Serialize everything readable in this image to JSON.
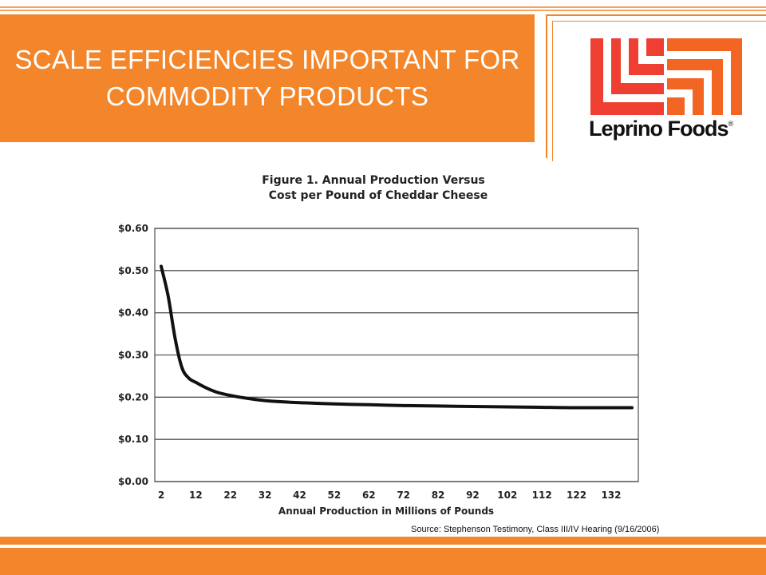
{
  "slide": {
    "title_lines": [
      "SCALE EFFICIENCIES IMPORTANT FOR",
      "COMMODITY PRODUCTS"
    ],
    "logo_text": "Leprino Foods",
    "logo_registered": "®",
    "source": "Source: Stephenson Testimony, Class III/IV  Hearing (9/16/2006)"
  },
  "colors": {
    "band": "#f3862a",
    "logo_red": "#ee3f32",
    "logo_orange": "#f26522"
  },
  "chart_data": {
    "type": "line",
    "title_lines": [
      "Figure 1.  Annual Production Versus",
      "Cost per Pound of Cheddar Cheese"
    ],
    "xlabel": "Annual Production in Millions of Pounds",
    "ylabel": "",
    "xticks": [
      2,
      12,
      22,
      32,
      42,
      52,
      62,
      72,
      82,
      92,
      102,
      112,
      122,
      132
    ],
    "yticks": [
      "$0.00",
      "$0.10",
      "$0.20",
      "$0.30",
      "$0.40",
      "$0.50",
      "$0.60"
    ],
    "xlim": [
      2,
      138
    ],
    "ylim": [
      0,
      0.6
    ],
    "grid": "horizontal",
    "legend": "none",
    "x": [
      2,
      4,
      6,
      8,
      10,
      12,
      15,
      18,
      22,
      27,
      32,
      37,
      42,
      52,
      62,
      72,
      82,
      92,
      102,
      112,
      122,
      132,
      138
    ],
    "y": [
      0.51,
      0.44,
      0.34,
      0.27,
      0.245,
      0.235,
      0.222,
      0.212,
      0.204,
      0.197,
      0.192,
      0.189,
      0.187,
      0.184,
      0.182,
      0.18,
      0.179,
      0.178,
      0.177,
      0.176,
      0.175,
      0.175,
      0.175
    ]
  }
}
